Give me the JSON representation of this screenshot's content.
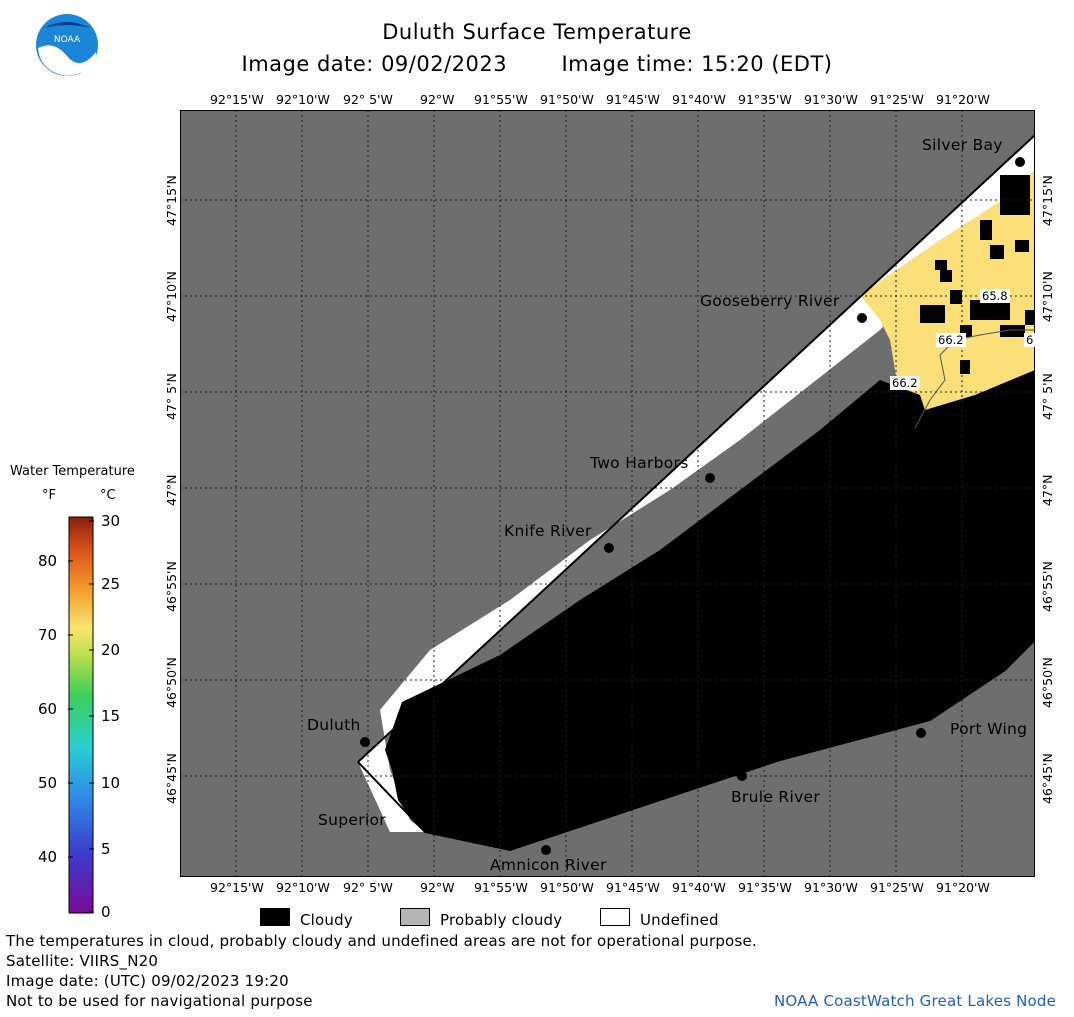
{
  "header": {
    "title": "Duluth Surface Temperature",
    "image_date_label": "Image date: 09/02/2023",
    "image_time_label": "Image time: 15:20 (EDT)"
  },
  "map": {
    "lon_labels": [
      "92°15'W",
      "92°10'W",
      "92° 5'W",
      "92°W",
      "91°55'W",
      "91°50'W",
      "91°45'W",
      "91°40'W",
      "91°35'W",
      "91°30'W",
      "91°25'W",
      "91°20'W"
    ],
    "lat_labels": [
      "47°15'N",
      "47°10'N",
      "47° 5'N",
      "47°N",
      "46°55'N",
      "46°50'N",
      "46°45'N"
    ],
    "places": [
      {
        "name": "Silver Bay"
      },
      {
        "name": "Gooseberry River"
      },
      {
        "name": "Two Harbors"
      },
      {
        "name": "Knife River"
      },
      {
        "name": "Duluth"
      },
      {
        "name": "Superior"
      },
      {
        "name": "Amnicon River"
      },
      {
        "name": "Brule River"
      },
      {
        "name": "Port Wing"
      }
    ],
    "isotherm_labels": [
      "65.8",
      "66.2",
      "66.2",
      "6"
    ],
    "colors": {
      "land": "#6e6e6e",
      "cloud": "#000000",
      "undefined": "#ffffff",
      "warm_water": "#fbe07a"
    }
  },
  "legend": {
    "title": "Water Temperature",
    "unit_f": "°F",
    "unit_c": "°C",
    "f_ticks": [
      80,
      70,
      60,
      50,
      40
    ],
    "c_ticks": [
      30,
      25,
      20,
      15,
      10,
      5,
      0
    ]
  },
  "key": {
    "cloudy": "Cloudy",
    "probably_cloudy": "Probably cloudy",
    "undefined": "Undefined"
  },
  "footer": {
    "disclaimer": "The temperatures in cloud, probably cloudy and undefined areas are not for operational purpose.",
    "satellite": "Satellite: VIIRS_N20",
    "image_date_utc": "Image date: (UTC) 09/02/2023  19:20",
    "nav_warning": "Not to be used for navigational purpose",
    "credit": "NOAA CoastWatch Great Lakes Node"
  }
}
